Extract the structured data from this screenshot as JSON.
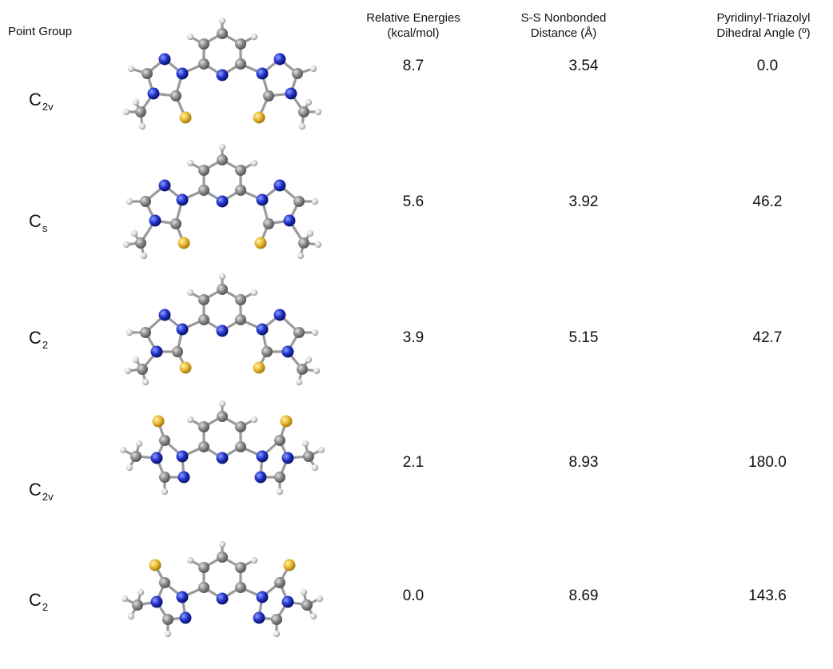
{
  "headers": {
    "point_group": "Point Group",
    "relative_energies": [
      "Relative Energies",
      "(kcal/mol)"
    ],
    "ss_distance": [
      "S-S Nonbonded",
      "Distance (Å)"
    ],
    "dihedral": [
      "Pyridinyl-Triazolyl",
      "Dihedral Angle (º)"
    ]
  },
  "rows": [
    {
      "pg_main": "C",
      "pg_sub": "2v",
      "energy": "8.7",
      "ss": "3.54",
      "dihedral": "0.0"
    },
    {
      "pg_main": "C",
      "pg_sub": "s",
      "energy": "5.6",
      "ss": "3.92",
      "dihedral": "46.2"
    },
    {
      "pg_main": "C",
      "pg_sub": "2",
      "energy": "3.9",
      "ss": "5.15",
      "dihedral": "42.7"
    },
    {
      "pg_main": "C",
      "pg_sub": "2v",
      "energy": "2.1",
      "ss": "8.93",
      "dihedral": "180.0"
    },
    {
      "pg_main": "C",
      "pg_sub": "2",
      "energy": "0.0",
      "ss": "8.69",
      "dihedral": "143.6"
    }
  ],
  "colors": {
    "carbon": "#8a8a8a",
    "nitrogen": "#2233cc",
    "sulfur": "#e8b830",
    "hydrogen": "#d8d8d8",
    "bond": "#9a9a9a"
  }
}
